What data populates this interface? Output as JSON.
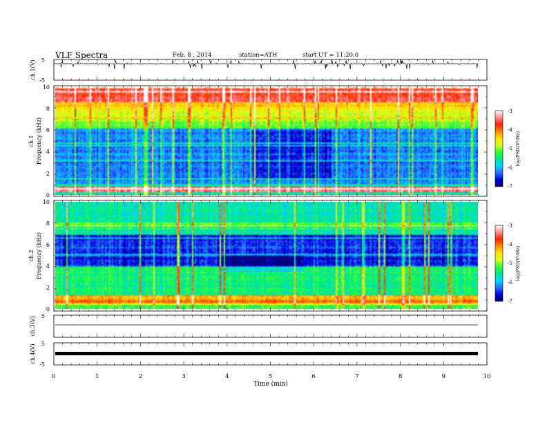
{
  "header": {
    "title": "VLF Spectra",
    "date": "Feb. 8 , 2014",
    "station": "station=ATH",
    "start": "start UT =  11:20:0"
  },
  "chart_data": [
    {
      "type": "line",
      "panel": "ch1-waveform",
      "ylabel": "ch.1(V)",
      "ylim": [
        -5,
        5
      ],
      "yticks": [
        "5",
        "-5"
      ],
      "xlim": [
        0,
        10
      ],
      "trace": "noisy waveform centred near 3 V, spikes between about 0.5 and 4 V",
      "series_color": "#000000"
    },
    {
      "type": "heatmap",
      "panel": "ch1-spectrogram",
      "ylabel": "ch.1",
      "ylabel2": "Frequency (kHz)",
      "ylim": [
        0,
        10
      ],
      "yticks": [
        "0",
        "2",
        "4",
        "6",
        "8",
        "10"
      ],
      "xlim": [
        0,
        9.8
      ],
      "description_by_band_kHz": [
        {
          "range": [
            8.5,
            10
          ],
          "level": "high (-3.5 to -4)"
        },
        {
          "range": [
            6,
            8.5
          ],
          "level": "mid (-4.5 to -5)"
        },
        {
          "range": [
            1,
            6
          ],
          "level": "low (-6 to -6.5)"
        },
        {
          "range": [
            0,
            1
          ],
          "level": "high line near 0.4 kHz (-3.5)"
        }
      ],
      "colorbar": {
        "label": "log(PSD(V²/Hz)",
        "ticks": [
          "-3",
          "-4",
          "-5",
          "-6",
          "-7"
        ],
        "range": [
          -7,
          -3
        ]
      }
    },
    {
      "type": "heatmap",
      "panel": "ch2-spectrogram",
      "ylabel": "ch.2",
      "ylabel2": "Frequency (kHz)",
      "ylim": [
        0,
        10
      ],
      "yticks": [
        "0",
        "2",
        "4",
        "6",
        "8",
        "10"
      ],
      "xlim": [
        0,
        9.8
      ],
      "description_by_band_kHz": [
        {
          "range": [
            7,
            10
          ],
          "level": "mid-low (-5.5 to -6)"
        },
        {
          "range": [
            4,
            7
          ],
          "level": "low (-6.5)"
        },
        {
          "range": [
            0,
            4
          ],
          "level": "mid (-5 to -5.5), strong near 0.7 kHz"
        }
      ],
      "colorbar": {
        "label": "log(PSD(V²/Hz)",
        "ticks": [
          "-3",
          "-4",
          "-5",
          "-6",
          "-7"
        ],
        "range": [
          -7,
          -3
        ]
      }
    },
    {
      "type": "line",
      "panel": "ch3-waveform",
      "ylabel": "ch.3(V)",
      "ylim": [
        -5,
        5
      ],
      "yticks": [
        "5"
      ],
      "xlim": [
        0,
        10
      ],
      "trace": "near-flat line at about 0 V",
      "series_color": "#000000"
    },
    {
      "type": "line",
      "panel": "ch4-waveform",
      "ylabel": "ch.4(V)",
      "ylim": [
        -5,
        5
      ],
      "yticks": [
        "5",
        "-5"
      ],
      "xlim": [
        0,
        10
      ],
      "trace": "thick flat band at about 0 V",
      "series_color": "#000000"
    }
  ],
  "x_axis": {
    "label": "Time (min)",
    "ticks": [
      "0",
      "1",
      "2",
      "3",
      "4",
      "5",
      "6",
      "7",
      "8",
      "9",
      "10"
    ]
  },
  "colormap": [
    "#000070",
    "#0000dd",
    "#2a6fff",
    "#00d5ff",
    "#00e890",
    "#30ff30",
    "#d8ff20",
    "#ffe000",
    "#ff8a00",
    "#ff2200",
    "#ff9090",
    "#ffffff"
  ]
}
